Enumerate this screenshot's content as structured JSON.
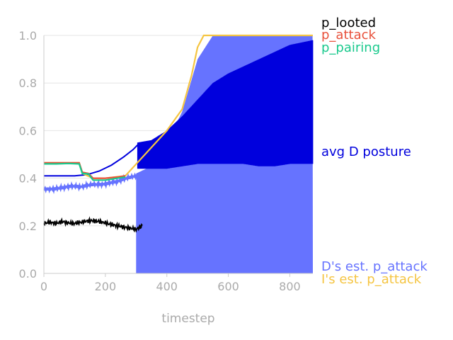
{
  "chart_data": {
    "type": "line",
    "xlabel": "timestep",
    "ylabel": "",
    "xlim": [
      0,
      875
    ],
    "ylim": [
      0,
      1.0
    ],
    "x_ticks": [
      0,
      200,
      400,
      600,
      800
    ],
    "x_tick_labels": [
      "0",
      "200",
      "400",
      "600",
      "800"
    ],
    "y_ticks": [
      0.0,
      0.2,
      0.4,
      0.6,
      0.8,
      1.0
    ],
    "y_tick_labels": [
      "0.0",
      "0.2",
      "0.4",
      "0.6",
      "0.8",
      "1.0"
    ],
    "grid": "horizontal",
    "legend": "right-side inline labels",
    "series": [
      {
        "name": "p_looted",
        "color": "#000000",
        "x": [
          0,
          20,
          40,
          60,
          80,
          100,
          120,
          140,
          160,
          180,
          200,
          220,
          240,
          260,
          280,
          300,
          320
        ],
        "y": [
          0.21,
          0.215,
          0.21,
          0.218,
          0.212,
          0.21,
          0.215,
          0.22,
          0.222,
          0.218,
          0.212,
          0.205,
          0.2,
          0.195,
          0.19,
          0.185,
          0.2
        ]
      },
      {
        "name": "p_attack",
        "color": "#e8503a",
        "x": [
          0,
          40,
          80,
          115,
          125,
          145,
          160,
          200,
          240,
          265
        ],
        "y": [
          0.465,
          0.465,
          0.465,
          0.465,
          0.425,
          0.42,
          0.4,
          0.4,
          0.405,
          0.41
        ]
      },
      {
        "name": "p_pairing",
        "color": "#18c98c",
        "x": [
          0,
          40,
          80,
          115,
          125,
          145,
          160,
          200,
          240,
          265
        ],
        "y": [
          0.46,
          0.46,
          0.462,
          0.46,
          0.42,
          0.418,
          0.392,
          0.392,
          0.4,
          0.405
        ]
      },
      {
        "name": "avg D posture",
        "color": "#0000dd",
        "x": [
          0,
          20,
          60,
          100,
          140,
          180,
          220,
          260,
          290,
          305
        ],
        "y": [
          0.41,
          0.41,
          0.41,
          0.41,
          0.415,
          0.43,
          0.455,
          0.49,
          0.52,
          0.54
        ],
        "upper_envelope": {
          "x": [
            305,
            350,
            400,
            450,
            500,
            550,
            600,
            650,
            700,
            750,
            800,
            875
          ],
          "y": [
            0.55,
            0.56,
            0.6,
            0.66,
            0.73,
            0.8,
            0.84,
            0.87,
            0.9,
            0.93,
            0.96,
            0.98
          ]
        },
        "lower_envelope": {
          "x": [
            305,
            350,
            400,
            450,
            500,
            550,
            600,
            650,
            700,
            750,
            800,
            875
          ],
          "y": [
            0.44,
            0.44,
            0.44,
            0.45,
            0.46,
            0.46,
            0.46,
            0.46,
            0.45,
            0.45,
            0.46,
            0.46
          ]
        }
      },
      {
        "name": "D's est. p_attack",
        "color": "#6673ff",
        "x": [
          0,
          40,
          80,
          120,
          160,
          200,
          240,
          280,
          300
        ],
        "y": [
          0.355,
          0.36,
          0.365,
          0.36,
          0.375,
          0.38,
          0.385,
          0.4,
          0.41
        ],
        "band_upper": {
          "x": [
            300,
            350,
            400,
            450,
            500,
            550,
            600,
            650,
            700,
            750,
            800,
            875
          ],
          "y": [
            0.42,
            0.45,
            0.55,
            0.68,
            0.9,
            1.0,
            1.0,
            1.0,
            1.0,
            1.0,
            1.0,
            1.0
          ]
        },
        "band_lower": 0.0
      },
      {
        "name": "I's est. p_attack",
        "color": "#f5c542",
        "x": [
          0,
          40,
          80,
          115,
          125,
          160,
          200,
          265,
          400,
          450,
          480,
          500,
          520,
          875
        ],
        "y": [
          0.465,
          0.465,
          0.465,
          0.465,
          0.42,
          0.4,
          0.4,
          0.41,
          0.6,
          0.69,
          0.83,
          0.95,
          1.0,
          1.0
        ]
      }
    ]
  }
}
